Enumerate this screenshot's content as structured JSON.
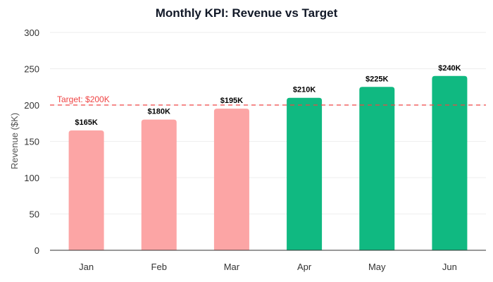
{
  "chart_data": {
    "type": "bar",
    "title": "Monthly KPI: Revenue vs Target",
    "xlabel": "",
    "ylabel": "Revenue ($K)",
    "categories": [
      "Jan",
      "Feb",
      "Mar",
      "Apr",
      "May",
      "Jun"
    ],
    "values": [
      165,
      180,
      195,
      210,
      225,
      240
    ],
    "data_labels": [
      "$165K",
      "$180K",
      "$195K",
      "$210K",
      "$225K",
      "$240K"
    ],
    "ylim": [
      0,
      300
    ],
    "yticks": [
      "0",
      "50",
      "100",
      "150",
      "200",
      "250",
      "300"
    ],
    "grid": true,
    "target": {
      "value": 200,
      "label": "Target: $200K",
      "color": "#ef4444"
    },
    "colors": {
      "below_target": "#fca5a5",
      "above_target": "#10b981"
    }
  }
}
